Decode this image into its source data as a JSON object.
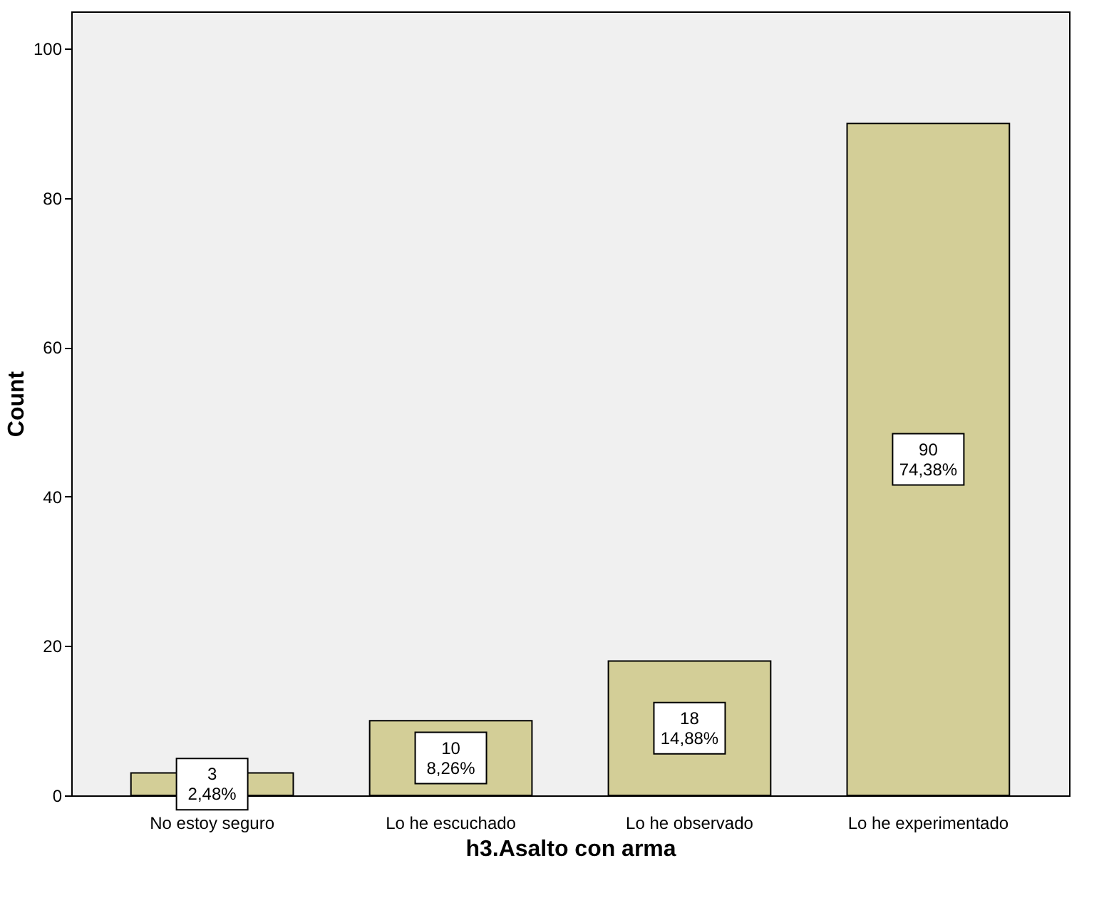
{
  "chart_data": {
    "type": "bar",
    "xlabel": "h3.Asalto con arma",
    "ylabel": "Count",
    "categories": [
      "No estoy seguro",
      "Lo he escuchado",
      "Lo he observado",
      "Lo he experimentado"
    ],
    "values": [
      3,
      10,
      18,
      90
    ],
    "value_labels": [
      "3\n2,48%",
      "10\n8,26%",
      "18\n14,88%",
      "90\n74,38%"
    ],
    "color": "#d3ce97",
    "ylim": [
      0,
      105
    ],
    "yticks": [
      0,
      20,
      40,
      60,
      80,
      100
    ],
    "grid": false
  }
}
